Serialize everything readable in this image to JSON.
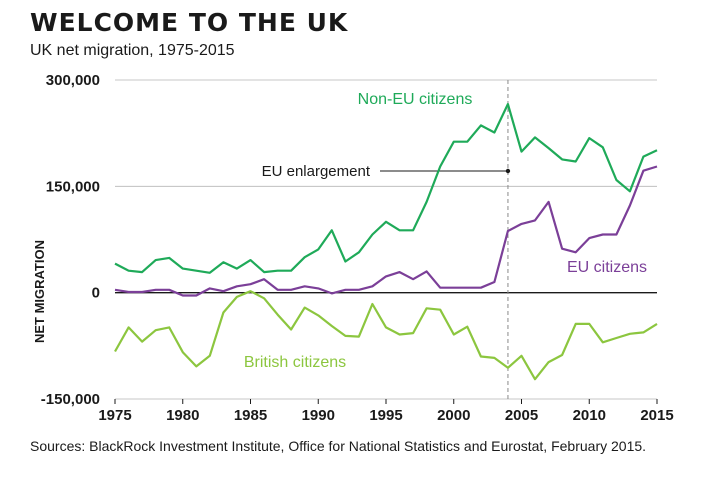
{
  "chart_data": {
    "type": "line",
    "title": "WELCOME TO THE UK",
    "subtitle": "UK net migration, 1975-2015",
    "ylabel": "NET MIGRATION",
    "xlabel": "",
    "ylim": [
      -150000,
      300000
    ],
    "xlim": [
      1975,
      2015
    ],
    "yticks": [
      "300,000",
      "150,000",
      "0",
      "-150,000"
    ],
    "ytick_values": [
      300000,
      150000,
      0,
      -150000
    ],
    "xticks": [
      "1975",
      "1980",
      "1985",
      "1990",
      "1995",
      "2000",
      "2005",
      "2010",
      "2015"
    ],
    "xtick_values": [
      1975,
      1980,
      1985,
      1990,
      1995,
      2000,
      2005,
      2010,
      2015
    ],
    "grid": "horizontal",
    "x": [
      1975,
      1976,
      1977,
      1978,
      1979,
      1980,
      1981,
      1982,
      1983,
      1984,
      1985,
      1986,
      1987,
      1988,
      1989,
      1990,
      1991,
      1992,
      1993,
      1994,
      1995,
      1996,
      1997,
      1998,
      1999,
      2000,
      2001,
      2002,
      2003,
      2004,
      2005,
      2006,
      2007,
      2008,
      2009,
      2010,
      2011,
      2012,
      2013,
      2014,
      2015
    ],
    "series": [
      {
        "name": "Non-EU citizens",
        "color": "#1faa59",
        "values": [
          41000,
          31000,
          29000,
          46000,
          49000,
          34000,
          31000,
          28000,
          43000,
          34000,
          46000,
          29000,
          31000,
          31000,
          50000,
          61000,
          88000,
          44000,
          57000,
          82000,
          100000,
          88000,
          88000,
          128000,
          178000,
          213000,
          213000,
          236000,
          226000,
          266000,
          199000,
          219000,
          204000,
          188000,
          185000,
          218000,
          205000,
          159000,
          143000,
          192000,
          201000
        ]
      },
      {
        "name": "EU citizens",
        "color": "#7b3f98",
        "values": [
          4000,
          1000,
          1000,
          4000,
          4000,
          -4000,
          -4000,
          6000,
          2000,
          9000,
          12000,
          19000,
          4000,
          4000,
          9000,
          6000,
          -1000,
          4000,
          4000,
          9000,
          23000,
          29000,
          19000,
          30000,
          7000,
          7000,
          7000,
          7000,
          15000,
          87000,
          97000,
          102000,
          128000,
          62000,
          57000,
          77000,
          82000,
          82000,
          123000,
          172000,
          178000
        ]
      },
      {
        "name": "British citizens",
        "color": "#8cc63f",
        "values": [
          -83000,
          -49000,
          -69000,
          -53000,
          -49000,
          -84000,
          -104000,
          -89000,
          -28000,
          -6000,
          2000,
          -8000,
          -31000,
          -52000,
          -21000,
          -32000,
          -47000,
          -61000,
          -62000,
          -16000,
          -49000,
          -59000,
          -57000,
          -22000,
          -24000,
          -59000,
          -48000,
          -90000,
          -92000,
          -106000,
          -89000,
          -122000,
          -98000,
          -88000,
          -44000,
          -44000,
          -70000,
          -64000,
          -58000,
          -56000,
          -44000
        ]
      }
    ],
    "annotations": [
      {
        "text": "EU enlargement",
        "x": 2004
      }
    ]
  },
  "source_text": "Sources: BlackRock Investment Institute, Office for National Statistics and Eurostat, February 2015."
}
